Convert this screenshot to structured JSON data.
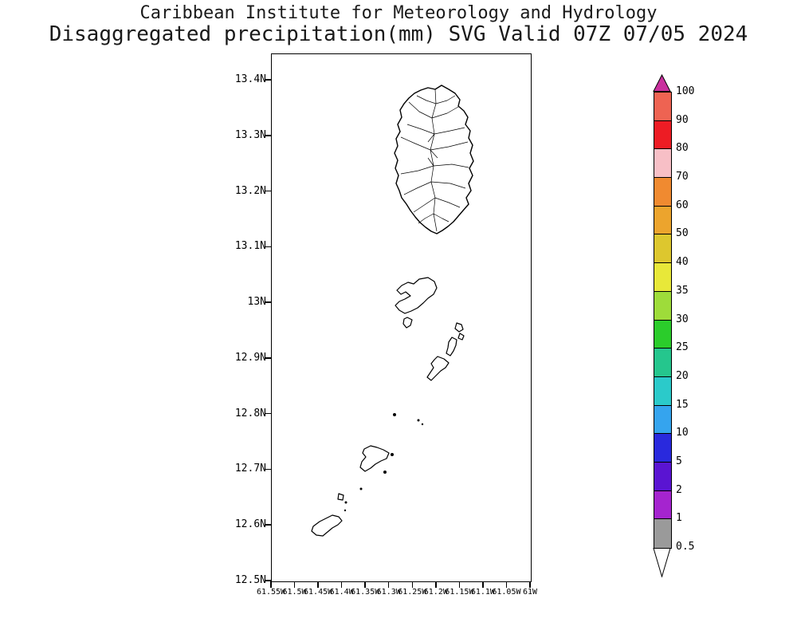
{
  "title": {
    "line1": "Caribbean Institute for Meteorology and Hydrology",
    "line2": "Disaggregated precipitation(mm) SVG Valid 07Z 07/05 2024"
  },
  "axes": {
    "lat_labels": [
      "13.4N",
      "13.3N",
      "13.2N",
      "13.1N",
      "13N",
      "12.9N",
      "12.8N",
      "12.7N",
      "12.6N",
      "12.5N"
    ],
    "lon_labels": [
      "61.55W",
      "61.5W",
      "61.45W",
      "61.4W",
      "61.35W",
      "61.3W",
      "61.25W",
      "61.2W",
      "61.15W",
      "61.1W",
      "61.05W",
      "61W"
    ]
  },
  "colorbar": {
    "unit": "mm",
    "labels": [
      "100",
      "90",
      "80",
      "70",
      "60",
      "50",
      "40",
      "35",
      "30",
      "25",
      "20",
      "15",
      "10",
      "5",
      "2",
      "1",
      "0.5"
    ],
    "segment_colors_top_to_bottom": [
      "#ee6352",
      "#ed1c24",
      "#f7bfc6",
      "#f08a30",
      "#eca42d",
      "#ddc72e",
      "#e8e839",
      "#9edc3a",
      "#2bcc2b",
      "#25c68d",
      "#2bcaca",
      "#35a4ee",
      "#2929dd",
      "#5a14d2",
      "#a524cf",
      "#9a9a9a"
    ],
    "over_color": "#c9309e",
    "under_color": "#ffffff",
    "outline_color": "#000000"
  }
}
